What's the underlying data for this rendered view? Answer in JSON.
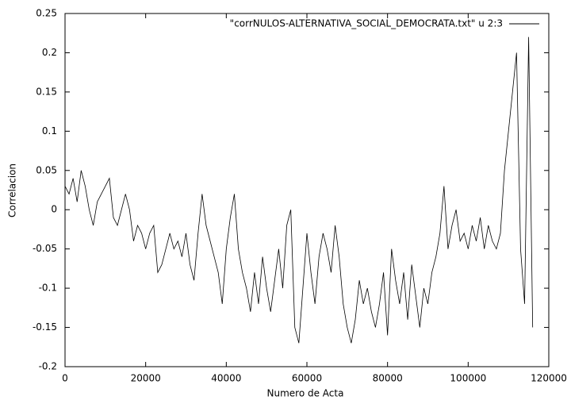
{
  "chart_data": {
    "type": "line",
    "xlabel": "Numero de Acta",
    "ylabel": "Correlacion",
    "xlim": [
      0,
      120000
    ],
    "ylim": [
      -0.2,
      0.25
    ],
    "xticks": [
      0,
      20000,
      40000,
      60000,
      80000,
      100000,
      120000
    ],
    "yticks": [
      -0.2,
      -0.15,
      -0.1,
      -0.05,
      0,
      0.05,
      0.1,
      0.15,
      0.2,
      0.25
    ],
    "legend": "top-right",
    "x": [
      0,
      1000,
      2000,
      3000,
      4000,
      5000,
      6000,
      7000,
      8000,
      9000,
      10000,
      11000,
      12000,
      13000,
      14000,
      15000,
      16000,
      17000,
      18000,
      19000,
      20000,
      21000,
      22000,
      23000,
      24000,
      25000,
      26000,
      27000,
      28000,
      29000,
      30000,
      31000,
      32000,
      33000,
      34000,
      35000,
      36000,
      37000,
      38000,
      39000,
      40000,
      41000,
      42000,
      43000,
      44000,
      45000,
      46000,
      47000,
      48000,
      49000,
      50000,
      51000,
      52000,
      53000,
      54000,
      55000,
      56000,
      57000,
      58000,
      59000,
      60000,
      61000,
      62000,
      63000,
      64000,
      65000,
      66000,
      67000,
      68000,
      69000,
      70000,
      71000,
      72000,
      73000,
      74000,
      75000,
      76000,
      77000,
      78000,
      79000,
      80000,
      81000,
      82000,
      83000,
      84000,
      85000,
      86000,
      87000,
      88000,
      89000,
      90000,
      91000,
      92000,
      93000,
      94000,
      95000,
      96000,
      97000,
      98000,
      99000,
      100000,
      101000,
      102000,
      103000,
      104000,
      105000,
      106000,
      107000,
      108000,
      109000,
      110000,
      111000,
      112000,
      113000,
      114000,
      115000,
      116000
    ],
    "series": [
      {
        "name": "\"corrNULOS-ALTERNATIVA_SOCIAL_DEMOCRATA.txt\" u 2:3",
        "color": "#000000",
        "values": [
          0.03,
          0.02,
          0.04,
          0.01,
          0.05,
          0.03,
          0.0,
          -0.02,
          0.01,
          0.02,
          0.03,
          0.04,
          -0.01,
          -0.02,
          0.0,
          0.02,
          0.0,
          -0.04,
          -0.02,
          -0.03,
          -0.05,
          -0.03,
          -0.02,
          -0.08,
          -0.07,
          -0.05,
          -0.03,
          -0.05,
          -0.04,
          -0.06,
          -0.03,
          -0.07,
          -0.09,
          -0.03,
          0.02,
          -0.02,
          -0.04,
          -0.06,
          -0.08,
          -0.12,
          -0.05,
          -0.01,
          0.02,
          -0.05,
          -0.08,
          -0.1,
          -0.13,
          -0.08,
          -0.12,
          -0.06,
          -0.1,
          -0.13,
          -0.09,
          -0.05,
          -0.1,
          -0.02,
          0.0,
          -0.15,
          -0.17,
          -0.1,
          -0.03,
          -0.08,
          -0.12,
          -0.06,
          -0.03,
          -0.05,
          -0.08,
          -0.02,
          -0.06,
          -0.12,
          -0.15,
          -0.17,
          -0.14,
          -0.09,
          -0.12,
          -0.1,
          -0.13,
          -0.15,
          -0.12,
          -0.08,
          -0.16,
          -0.05,
          -0.09,
          -0.12,
          -0.08,
          -0.14,
          -0.07,
          -0.11,
          -0.15,
          -0.1,
          -0.12,
          -0.08,
          -0.06,
          -0.03,
          0.03,
          -0.05,
          -0.02,
          0.0,
          -0.04,
          -0.03,
          -0.05,
          -0.02,
          -0.04,
          -0.01,
          -0.05,
          -0.02,
          -0.04,
          -0.05,
          -0.03,
          0.05,
          0.1,
          0.15,
          0.2,
          -0.05,
          -0.12,
          0.22,
          -0.15
        ]
      }
    ]
  }
}
